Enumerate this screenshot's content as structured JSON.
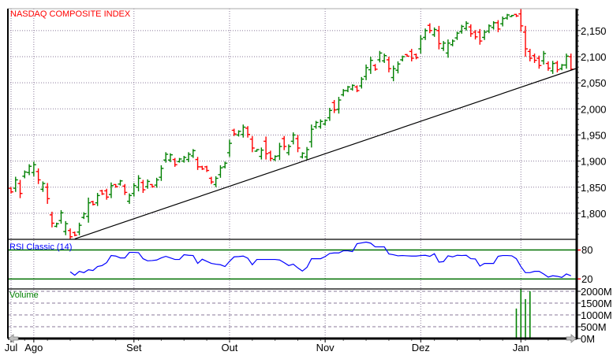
{
  "chart_data": {
    "type": "ohlc",
    "title": "NASDAQ COMPOSITE INDEX",
    "x_tick_labels": [
      "Jul",
      "Ago",
      "Set",
      "Out",
      "Nov",
      "Dez",
      "Jan"
    ],
    "x_tick_bar_index": [
      0,
      5,
      27,
      48,
      69,
      90,
      112
    ],
    "price_axis": {
      "ylim": [
        1752,
        2192
      ],
      "ticks": [
        1800,
        1850,
        1900,
        1950,
        2000,
        2050,
        2100,
        2150
      ],
      "tick_labels": [
        "1,800",
        "1,850",
        "1,900",
        "1,950",
        "2,000",
        "2,050",
        "2,100",
        "2,150"
      ],
      "grid": true
    },
    "colors": {
      "up": "#008000",
      "down": "#ff0000",
      "rsi": "#0000ff",
      "volume": "#008000",
      "title": "#ff0000",
      "levels": "#007000"
    },
    "ohlc_columns": [
      "open",
      "high",
      "low",
      "close"
    ],
    "ohlc": [
      [
        1848,
        1850,
        1838,
        1841
      ],
      [
        1848,
        1870,
        1841,
        1864
      ],
      [
        1857,
        1864,
        1829,
        1838
      ],
      [
        1871,
        1882,
        1867,
        1879
      ],
      [
        1878,
        1894,
        1873,
        1890
      ],
      [
        1878,
        1899,
        1871,
        1893
      ],
      [
        1880,
        1886,
        1856,
        1864
      ],
      [
        1846,
        1861,
        1841,
        1857
      ],
      [
        1850,
        1858,
        1818,
        1828
      ],
      [
        1797,
        1803,
        1773,
        1781
      ],
      [
        1775,
        1782,
        1773,
        1780
      ],
      [
        1786,
        1806,
        1780,
        1801
      ],
      [
        1765,
        1785,
        1758,
        1780
      ],
      [
        1767,
        1771,
        1750,
        1755
      ],
      [
        1763,
        1765,
        1756,
        1758
      ],
      [
        1764,
        1782,
        1758,
        1777
      ],
      [
        1792,
        1802,
        1789,
        1799
      ],
      [
        1794,
        1830,
        1782,
        1820
      ],
      [
        1822,
        1824,
        1815,
        1817
      ],
      [
        1820,
        1839,
        1814,
        1834
      ],
      [
        1843,
        1845,
        1835,
        1837
      ],
      [
        1843,
        1847,
        1826,
        1831
      ],
      [
        1836,
        1859,
        1829,
        1853
      ],
      [
        1855,
        1856,
        1849,
        1851
      ],
      [
        1856,
        1864,
        1853,
        1862
      ],
      [
        1852,
        1856,
        1835,
        1840
      ],
      [
        1823,
        1838,
        1818,
        1834
      ],
      [
        1838,
        1858,
        1832,
        1853
      ],
      [
        1850,
        1873,
        1842,
        1867
      ],
      [
        1859,
        1864,
        1839,
        1845
      ],
      [
        1851,
        1865,
        1847,
        1861
      ],
      [
        1855,
        1856,
        1849,
        1851
      ],
      [
        1854,
        1868,
        1849,
        1864
      ],
      [
        1869,
        1892,
        1862,
        1886
      ],
      [
        1902,
        1917,
        1897,
        1913
      ],
      [
        1902,
        1915,
        1898,
        1912
      ],
      [
        1903,
        1906,
        1889,
        1893
      ],
      [
        1899,
        1906,
        1897,
        1904
      ],
      [
        1900,
        1910,
        1897,
        1907
      ],
      [
        1903,
        1917,
        1898,
        1913
      ],
      [
        1910,
        1923,
        1906,
        1920
      ],
      [
        1903,
        1908,
        1883,
        1889
      ],
      [
        1889,
        1891,
        1883,
        1885
      ],
      [
        1889,
        1891,
        1879,
        1882
      ],
      [
        1867,
        1870,
        1856,
        1860
      ],
      [
        1855,
        1871,
        1850,
        1867
      ],
      [
        1874,
        1892,
        1868,
        1887
      ],
      [
        1889,
        1899,
        1886,
        1896
      ],
      [
        1916,
        1941,
        1908,
        1934
      ],
      [
        1959,
        1962,
        1948,
        1952
      ],
      [
        1950,
        1959,
        1947,
        1957
      ],
      [
        1951,
        1970,
        1945,
        1965
      ],
      [
        1963,
        1967,
        1945,
        1951
      ],
      [
        1942,
        1948,
        1917,
        1925
      ],
      [
        1919,
        1923,
        1918,
        1922
      ],
      [
        1909,
        1926,
        1903,
        1921
      ],
      [
        1938,
        1947,
        1903,
        1914
      ],
      [
        1916,
        1920,
        1900,
        1905
      ],
      [
        1903,
        1911,
        1900,
        1909
      ],
      [
        1910,
        1935,
        1902,
        1928
      ],
      [
        1943,
        1948,
        1921,
        1928
      ],
      [
        1916,
        1932,
        1911,
        1928
      ],
      [
        1938,
        1955,
        1932,
        1950
      ],
      [
        1943,
        1950,
        1917,
        1925
      ],
      [
        1908,
        1917,
        1905,
        1915
      ],
      [
        1908,
        1927,
        1902,
        1922
      ],
      [
        1937,
        1970,
        1926,
        1961
      ],
      [
        1966,
        1977,
        1962,
        1974
      ],
      [
        1966,
        1980,
        1962,
        1976
      ],
      [
        1971,
        1980,
        1968,
        1978
      ],
      [
        1983,
        2002,
        1977,
        1997
      ],
      [
        2012,
        2017,
        1992,
        1998
      ],
      [
        1999,
        2023,
        1991,
        2017
      ],
      [
        2027,
        2038,
        2024,
        2035
      ],
      [
        2035,
        2044,
        2032,
        2042
      ],
      [
        2038,
        2047,
        2035,
        2045
      ],
      [
        2042,
        2045,
        2032,
        2035
      ],
      [
        2044,
        2061,
        2039,
        2057
      ],
      [
        2062,
        2085,
        2055,
        2079
      ],
      [
        2075,
        2100,
        2067,
        2093
      ],
      [
        2083,
        2086,
        2073,
        2076
      ],
      [
        2094,
        2111,
        2089,
        2107
      ],
      [
        2092,
        2106,
        2088,
        2102
      ],
      [
        2094,
        2100,
        2070,
        2077
      ],
      [
        2060,
        2083,
        2053,
        2077
      ],
      [
        2074,
        2091,
        2068,
        2086
      ],
      [
        2094,
        2102,
        2091,
        2100
      ],
      [
        2104,
        2105,
        2100,
        2101
      ],
      [
        2110,
        2115,
        2091,
        2097
      ],
      [
        2104,
        2106,
        2095,
        2098
      ],
      [
        2115,
        2141,
        2106,
        2134
      ],
      [
        2137,
        2154,
        2132,
        2150
      ],
      [
        2160,
        2164,
        2145,
        2150
      ],
      [
        2142,
        2156,
        2138,
        2152
      ],
      [
        2150,
        2159,
        2114,
        2125
      ],
      [
        2116,
        2130,
        2111,
        2126
      ],
      [
        2107,
        2133,
        2098,
        2126
      ],
      [
        2123,
        2133,
        2120,
        2130
      ],
      [
        2136,
        2148,
        2132,
        2145
      ],
      [
        2148,
        2161,
        2144,
        2158
      ],
      [
        2154,
        2168,
        2150,
        2164
      ],
      [
        2157,
        2162,
        2138,
        2144
      ],
      [
        2147,
        2151,
        2133,
        2138
      ],
      [
        2147,
        2153,
        2123,
        2130
      ],
      [
        2137,
        2151,
        2132,
        2147
      ],
      [
        2149,
        2162,
        2145,
        2159
      ],
      [
        2156,
        2168,
        2152,
        2165
      ],
      [
        2165,
        2170,
        2147,
        2153
      ],
      [
        2163,
        2177,
        2158,
        2173
      ],
      [
        2174,
        2182,
        2171,
        2180
      ],
      [
        2177,
        2180,
        2176,
        2179
      ],
      [
        2181,
        2182,
        2176,
        2178
      ],
      [
        2182,
        2191,
        2148,
        2159
      ],
      [
        2147,
        2159,
        2100,
        2115
      ],
      [
        2110,
        2115,
        2091,
        2097
      ],
      [
        2102,
        2106,
        2088,
        2093
      ],
      [
        2097,
        2102,
        2077,
        2083
      ],
      [
        2092,
        2111,
        2085,
        2106
      ],
      [
        2087,
        2091,
        2073,
        2078
      ],
      [
        2073,
        2092,
        2067,
        2087
      ],
      [
        2088,
        2092,
        2070,
        2075
      ],
      [
        2077,
        2086,
        2074,
        2084
      ],
      [
        2084,
        2106,
        2077,
        2101
      ],
      [
        2100,
        2106,
        2074,
        2076
      ]
    ],
    "trendline": [
      [
        14,
        1751
      ],
      [
        124,
        2077
      ]
    ],
    "rsi": {
      "label": "RSI Classic (14)",
      "levels": [
        80,
        20
      ],
      "level_labels": [
        "80",
        "20"
      ],
      "ylim": [
        0,
        100
      ],
      "start_bar_index": 13,
      "values": [
        34.8,
        27.7,
        35.8,
        33.1,
        39.1,
        37.5,
        45.7,
        47.8,
        53.8,
        68.6,
        67.5,
        63.6,
        63.6,
        75.1,
        75.1,
        74.5,
        62,
        57.6,
        58.2,
        59.3,
        63.6,
        66.9,
        63.6,
        60.4,
        60.4,
        70.2,
        69.1,
        68.6,
        52.2,
        60.9,
        56.6,
        52.2,
        50.6,
        49.5,
        45.7,
        56.6,
        65.8,
        66.4,
        67.5,
        63.1,
        49.5,
        60.4,
        60.4,
        60.4,
        60.4,
        60.4,
        59.3,
        53.8,
        47.8,
        50.6,
        42.9,
        36.4,
        44,
        62,
        62,
        62,
        66.4,
        72.9,
        74,
        74,
        78.4,
        78.4,
        76.7,
        93.1,
        94.7,
        96.4,
        94.2,
        86.5,
        86.5,
        86.5,
        71.8,
        70.2,
        68,
        68.6,
        68,
        67.5,
        67.5,
        68.6,
        69.1,
        66.9,
        72.4,
        54.9,
        56,
        68,
        65.8,
        69.1,
        68.6,
        69.1,
        62,
        61.5,
        46.7,
        52.2,
        52.2,
        52.2,
        66.9,
        68.6,
        68.6,
        68,
        62,
        45.7,
        33.1,
        33.1,
        35.8,
        35.8,
        30.4,
        23.9,
        26.6,
        25.5,
        23.3,
        30.4,
        26.6
      ]
    },
    "volume": {
      "label": "Volume",
      "unit": "M",
      "ylim": [
        0,
        2000
      ],
      "ticks": [
        0,
        500,
        1000,
        1500,
        2000
      ],
      "tick_labels": [
        "0M",
        "500M",
        "1000M",
        "1500M",
        "2000M"
      ],
      "bars": [
        {
          "bar_index": 111,
          "value": 1270
        },
        {
          "bar_index": 112,
          "value": 2090
        },
        {
          "bar_index": 113,
          "value": 1670
        },
        {
          "bar_index": 114,
          "value": 2000
        }
      ]
    }
  }
}
